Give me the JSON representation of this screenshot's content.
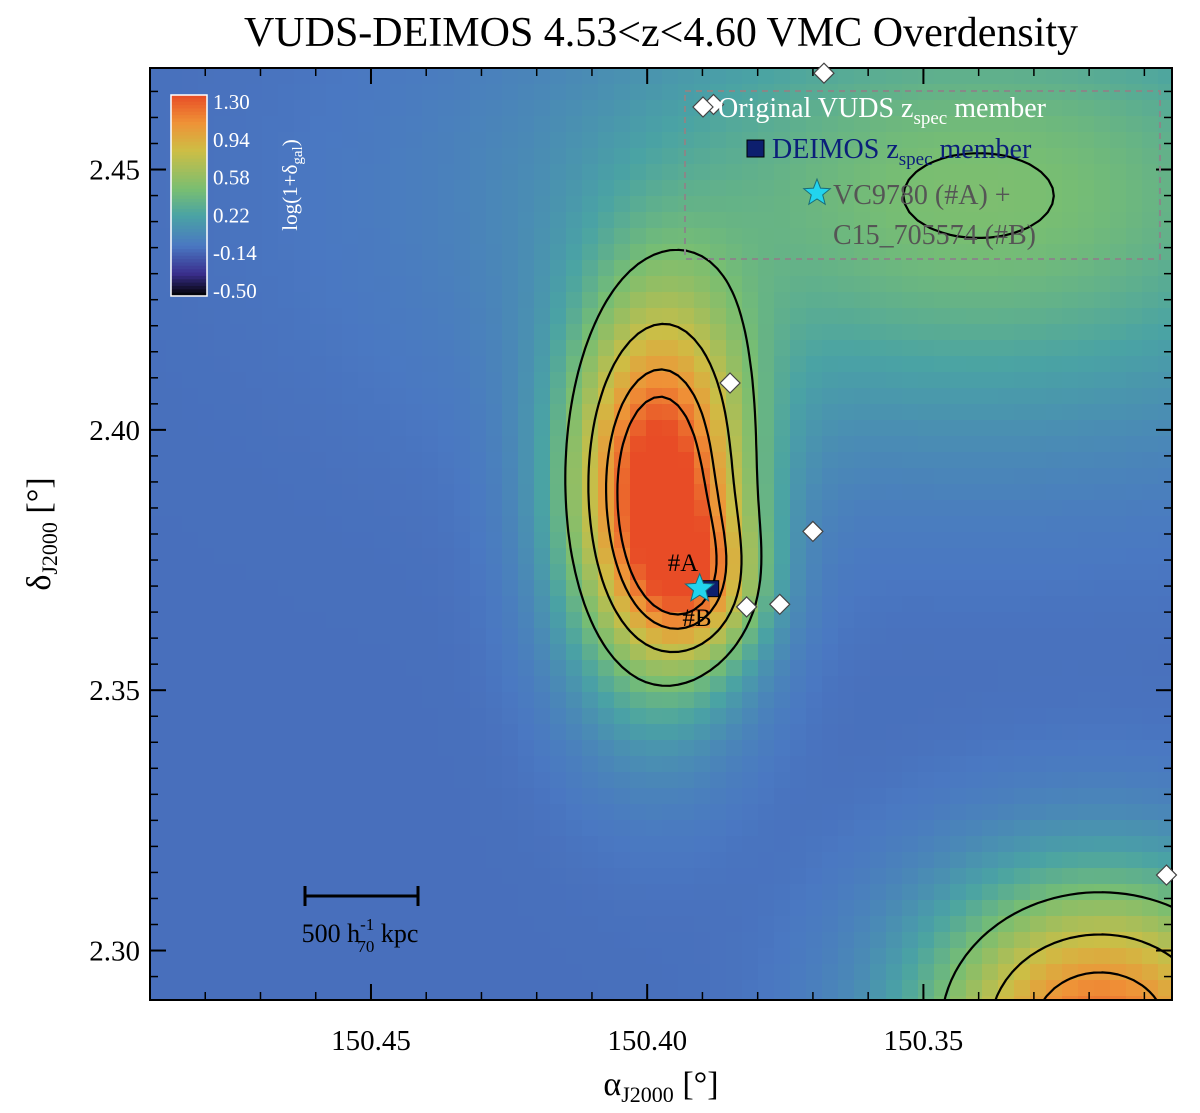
{
  "chart_data": {
    "type": "heatmap",
    "title": "VUDS-DEIMOS 4.53<z<4.60 VMC Overdensity",
    "xlabel": {
      "main": "α",
      "sub": "J2000",
      "unit": " [°]"
    },
    "ylabel": {
      "main": "δ",
      "sub": "J2000",
      "unit": " [°]"
    },
    "xlim": [
      150.49,
      150.305
    ],
    "ylim": [
      2.2905,
      2.4695
    ],
    "x_ticks": [
      150.45,
      150.4,
      150.35
    ],
    "x_tick_labels": [
      "150.45",
      "150.40",
      "150.35"
    ],
    "y_ticks": [
      2.3,
      2.35,
      2.4,
      2.45
    ],
    "y_tick_labels": [
      "2.30",
      "2.35",
      "2.40",
      "2.45"
    ],
    "colorbar": {
      "label": "log(1+δ",
      "label_sub": "gal",
      "label_close": ")",
      "ticks": [
        "1.30",
        "0.94",
        "0.58",
        "0.22",
        "-0.14",
        "-0.50"
      ],
      "colors": [
        "#e84c26",
        "#ef9237",
        "#cdbe45",
        "#78be72",
        "#4aa3a4",
        "#4a78c2",
        "#3a2f8e",
        "#000000"
      ]
    },
    "density_map": {
      "background": -0.08,
      "peaks": [
        {
          "ra": 150.398,
          "dec": 2.388,
          "amp": 1.45,
          "sigma_ra": 0.0115,
          "sigma_dec": 0.025
        },
        {
          "ra": 150.39,
          "dec": 2.37,
          "amp": 0.45,
          "sigma_ra": 0.008,
          "sigma_dec": 0.01
        },
        {
          "ra": 150.318,
          "dec": 2.285,
          "amp": 1.25,
          "sigma_ra": 0.022,
          "sigma_dec": 0.02
        },
        {
          "ra": 150.34,
          "dec": 2.445,
          "amp": 0.55,
          "sigma_ra": 0.05,
          "sigma_dec": 0.03
        }
      ],
      "contour_levels": [
        0.45,
        0.75,
        1.0,
        1.15
      ]
    },
    "vuds_members": [
      {
        "ra": 150.368,
        "dec": 2.4685
      },
      {
        "ra": 150.388,
        "dec": 2.4625
      },
      {
        "ra": 150.385,
        "dec": 2.409
      },
      {
        "ra": 150.37,
        "dec": 2.3805
      },
      {
        "ra": 150.382,
        "dec": 2.366
      },
      {
        "ra": 150.376,
        "dec": 2.3665
      },
      {
        "ra": 150.306,
        "dec": 2.3145
      }
    ],
    "deimos_members": [
      {
        "ra": 150.3885,
        "dec": 2.3695
      }
    ],
    "stars": [
      {
        "ra": 150.3905,
        "dec": 2.3695
      }
    ],
    "annotations": [
      "#A",
      "#B"
    ],
    "scale_bar": {
      "label": "500 h",
      "sup": "-1",
      "sub": "70",
      "unit": " kpc"
    },
    "legend": {
      "entries": [
        {
          "marker": "diamond",
          "text": "Original VUDS z",
          "sub": "spec",
          "suffix": " member",
          "color": "#ffffff"
        },
        {
          "marker": "square",
          "text": "DEIMOS z",
          "sub": "spec",
          "suffix": " member",
          "color": "#0b1f7a"
        },
        {
          "marker": "star",
          "text": "VC9780 (#A) +",
          "text2": "C15_705574 (#B)",
          "color": "#555555"
        }
      ]
    },
    "colors": {
      "star": "#22d4ee",
      "deimos_square": "#0d1f6e",
      "legend_box": "#888888"
    }
  }
}
